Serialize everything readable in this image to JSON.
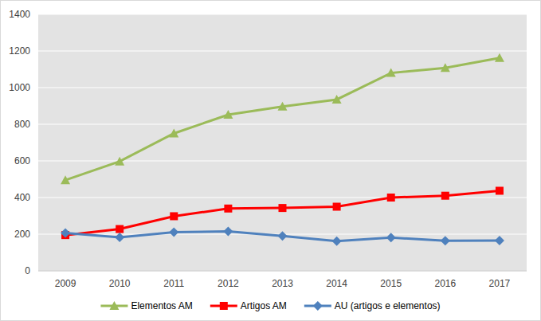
{
  "chart_data": {
    "type": "line",
    "categories": [
      "2009",
      "2010",
      "2011",
      "2012",
      "2013",
      "2014",
      "2015",
      "2016",
      "2017"
    ],
    "series": [
      {
        "name": "Elementos AM",
        "color": "#9bbb59",
        "marker": "triangle",
        "line_style": "solid",
        "values": [
          495,
          597,
          750,
          852,
          897,
          935,
          1080,
          1108,
          1162
        ]
      },
      {
        "name": "Artigos AM",
        "color": "#ff0000",
        "marker": "square",
        "line_style": "solid",
        "values": [
          195,
          228,
          298,
          340,
          343,
          350,
          400,
          410,
          437
        ]
      },
      {
        "name": "AU (artigos e elementos)",
        "color": "#4f81bd",
        "marker": "diamond",
        "line_style": "solid",
        "values": [
          207,
          183,
          211,
          215,
          190,
          162,
          181,
          164,
          165
        ]
      }
    ],
    "ylim": [
      0,
      1400
    ],
    "yticks": [
      0,
      200,
      400,
      600,
      800,
      1000,
      1200,
      1400
    ],
    "grid": true,
    "legend": "bottom"
  }
}
